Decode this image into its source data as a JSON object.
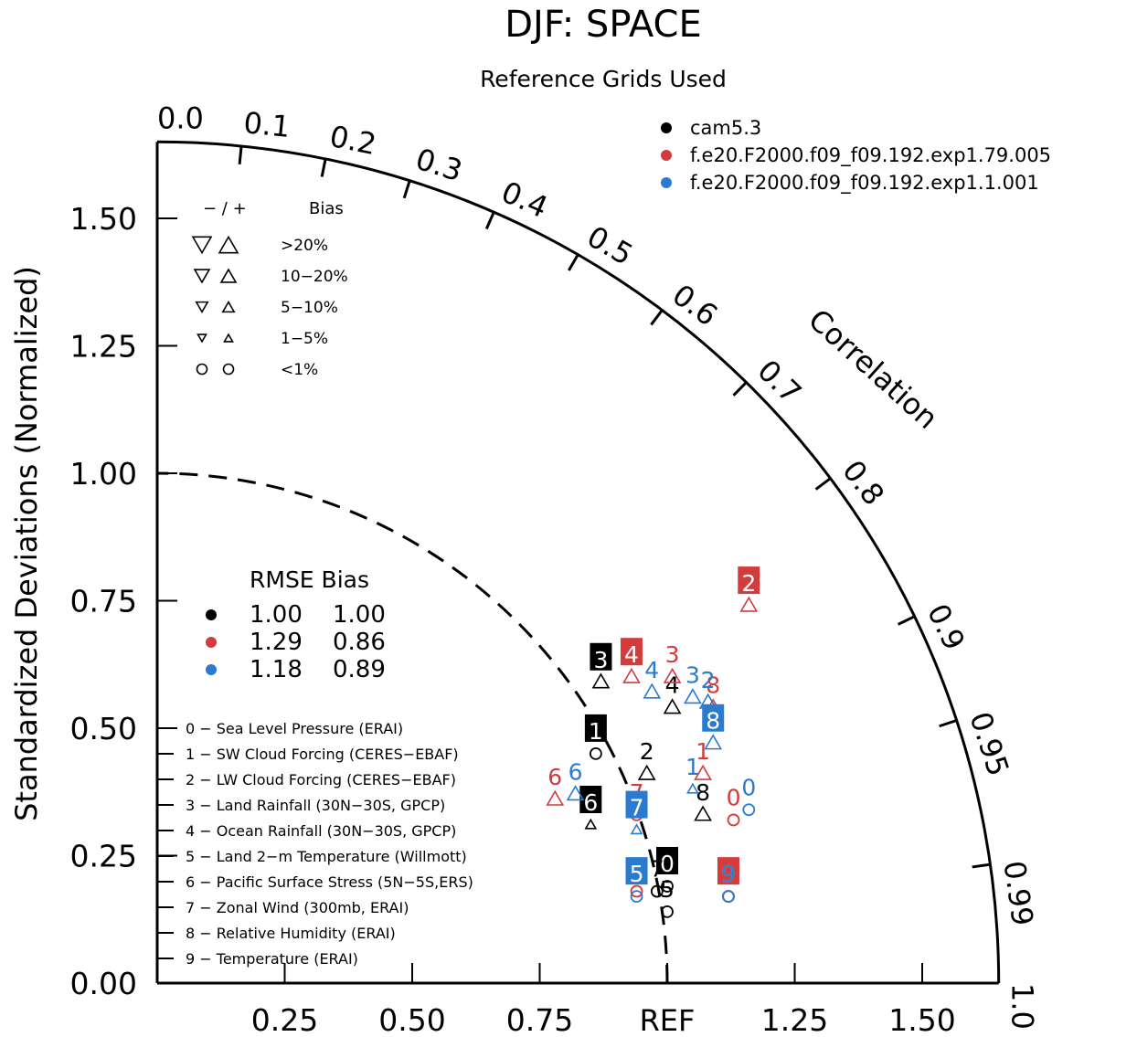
{
  "chart_data": {
    "type": "scatter",
    "title": "DJF: SPACE",
    "subtitle": "Reference Grids Used",
    "ylabel": "Standardized Deviations (Normalized)",
    "xlabel": "",
    "correlation_label": "Correlation",
    "ref_label": "REF",
    "std_range": [
      0,
      1.65
    ],
    "std_ticks": [
      "0.00",
      "0.25",
      "0.50",
      "0.75",
      "1.00",
      "1.25",
      "1.50"
    ],
    "std_tick_values": [
      0,
      0.25,
      0.5,
      0.75,
      1.0,
      1.25,
      1.5
    ],
    "x_ticks": [
      "0.25",
      "0.50",
      "0.75",
      "1.25",
      "1.50"
    ],
    "x_tick_values": [
      0.25,
      0.5,
      0.75,
      1.25,
      1.5
    ],
    "corr_labels": [
      "0.0",
      "0.1",
      "0.2",
      "0.3",
      "0.4",
      "0.5",
      "0.6",
      "0.7",
      "0.8",
      "0.9",
      "0.95",
      "0.99",
      "1.0"
    ],
    "corr_label_values": [
      0.0,
      0.1,
      0.2,
      0.3,
      0.4,
      0.5,
      0.6,
      0.7,
      0.8,
      0.9,
      0.95,
      0.99,
      1.0
    ],
    "corr_ticks": [
      0.1,
      0.2,
      0.3,
      0.4,
      0.5,
      0.6,
      0.7,
      0.8,
      0.9,
      0.95,
      0.99
    ],
    "series": [
      {
        "name": "cam5.3",
        "color": "#000000",
        "rmse": "1.00",
        "bias": "1.00",
        "points": [
          {
            "var": "0",
            "x": 1.0,
            "y": 0.19,
            "boxed": true,
            "bias": "circle"
          },
          {
            "var": "1",
            "x": 0.86,
            "y": 0.45,
            "boxed": true,
            "bias": "circle"
          },
          {
            "var": "2",
            "x": 0.96,
            "y": 0.41,
            "boxed": false,
            "bias": "up"
          },
          {
            "var": "3",
            "x": 0.87,
            "y": 0.59,
            "boxed": true,
            "bias": "up"
          },
          {
            "var": "4",
            "x": 1.01,
            "y": 0.54,
            "boxed": false,
            "bias": "up"
          },
          {
            "var": "5",
            "x": 1.0,
            "y": 0.14,
            "boxed": false,
            "bias": "circle"
          },
          {
            "var": "6",
            "x": 0.85,
            "y": 0.31,
            "boxed": true,
            "bias": "up_small"
          },
          {
            "var": "7",
            "x": 0.98,
            "y": 0.18,
            "boxed": false,
            "bias": "circle"
          },
          {
            "var": "8",
            "x": 1.07,
            "y": 0.33,
            "boxed": false,
            "bias": "up"
          },
          {
            "var": "9",
            "x": 1.12,
            "y": 0.17,
            "boxed": false,
            "bias": "circle"
          }
        ]
      },
      {
        "name": "f.e20.F2000.f09_f09.192.exp1.79.005",
        "color": "#d33c3c",
        "rmse": "1.29",
        "bias": "0.86",
        "points": [
          {
            "var": "0",
            "x": 1.13,
            "y": 0.32,
            "boxed": false,
            "bias": "circle"
          },
          {
            "var": "1",
            "x": 1.07,
            "y": 0.41,
            "boxed": false,
            "bias": "up"
          },
          {
            "var": "2",
            "x": 1.16,
            "y": 0.74,
            "boxed": true,
            "bias": "up"
          },
          {
            "var": "3",
            "x": 1.01,
            "y": 0.6,
            "boxed": false,
            "bias": "up"
          },
          {
            "var": "4",
            "x": 0.93,
            "y": 0.6,
            "boxed": true,
            "bias": "up"
          },
          {
            "var": "5",
            "x": 0.94,
            "y": 0.18,
            "boxed": false,
            "bias": "circle"
          },
          {
            "var": "6",
            "x": 0.78,
            "y": 0.36,
            "boxed": false,
            "bias": "up"
          },
          {
            "var": "7",
            "x": 0.94,
            "y": 0.33,
            "boxed": false,
            "bias": "circle"
          },
          {
            "var": "8",
            "x": 1.09,
            "y": 0.54,
            "boxed": false,
            "bias": "up"
          },
          {
            "var": "9",
            "x": 1.12,
            "y": 0.17,
            "boxed": true,
            "bias": "circle"
          }
        ]
      },
      {
        "name": "f.e20.F2000.f09_f09.192.exp1.1.001",
        "color": "#2a7bd0",
        "rmse": "1.18",
        "bias": "0.89",
        "points": [
          {
            "var": "0",
            "x": 1.16,
            "y": 0.34,
            "boxed": false,
            "bias": "circle"
          },
          {
            "var": "1",
            "x": 1.05,
            "y": 0.38,
            "boxed": false,
            "bias": "up_small"
          },
          {
            "var": "2",
            "x": 1.08,
            "y": 0.55,
            "boxed": false,
            "bias": "up"
          },
          {
            "var": "3",
            "x": 1.05,
            "y": 0.56,
            "boxed": false,
            "bias": "up"
          },
          {
            "var": "4",
            "x": 0.97,
            "y": 0.57,
            "boxed": false,
            "bias": "up"
          },
          {
            "var": "5",
            "x": 0.94,
            "y": 0.17,
            "boxed": true,
            "bias": "circle"
          },
          {
            "var": "6",
            "x": 0.82,
            "y": 0.37,
            "boxed": false,
            "bias": "up"
          },
          {
            "var": "7",
            "x": 0.94,
            "y": 0.3,
            "boxed": true,
            "bias": "up_small"
          },
          {
            "var": "8",
            "x": 1.09,
            "y": 0.47,
            "boxed": true,
            "bias": "up"
          },
          {
            "var": "9",
            "x": 1.12,
            "y": 0.17,
            "boxed": false,
            "bias": "circle"
          }
        ]
      }
    ]
  },
  "bias_legend": {
    "header_signs": "−  /  +",
    "header_label": "Bias",
    "rows": [
      {
        "label": ">20%",
        "size": 1.0
      },
      {
        "label": "10−20%",
        "size": 0.8
      },
      {
        "label": "5−10%",
        "size": 0.62
      },
      {
        "label": "1−5%",
        "size": 0.45
      },
      {
        "label": "<1%",
        "size": 0.0
      }
    ]
  },
  "stats_legend": {
    "header": "RMSE Bias"
  },
  "variables": [
    "0 − Sea Level Pressure (ERAI)",
    "1 − SW Cloud Forcing (CERES−EBAF)",
    "2 − LW Cloud Forcing (CERES−EBAF)",
    "3 − Land Rainfall (30N−30S, GPCP)",
    "4 − Ocean Rainfall (30N−30S, GPCP)",
    "5 − Land 2−m Temperature (Willmott)",
    "6 − Pacific Surface Stress (5N−5S,ERS)",
    "7 − Zonal Wind (300mb, ERAI)",
    "8 − Relative Humidity (ERAI)",
    "9 − Temperature (ERAI)"
  ]
}
